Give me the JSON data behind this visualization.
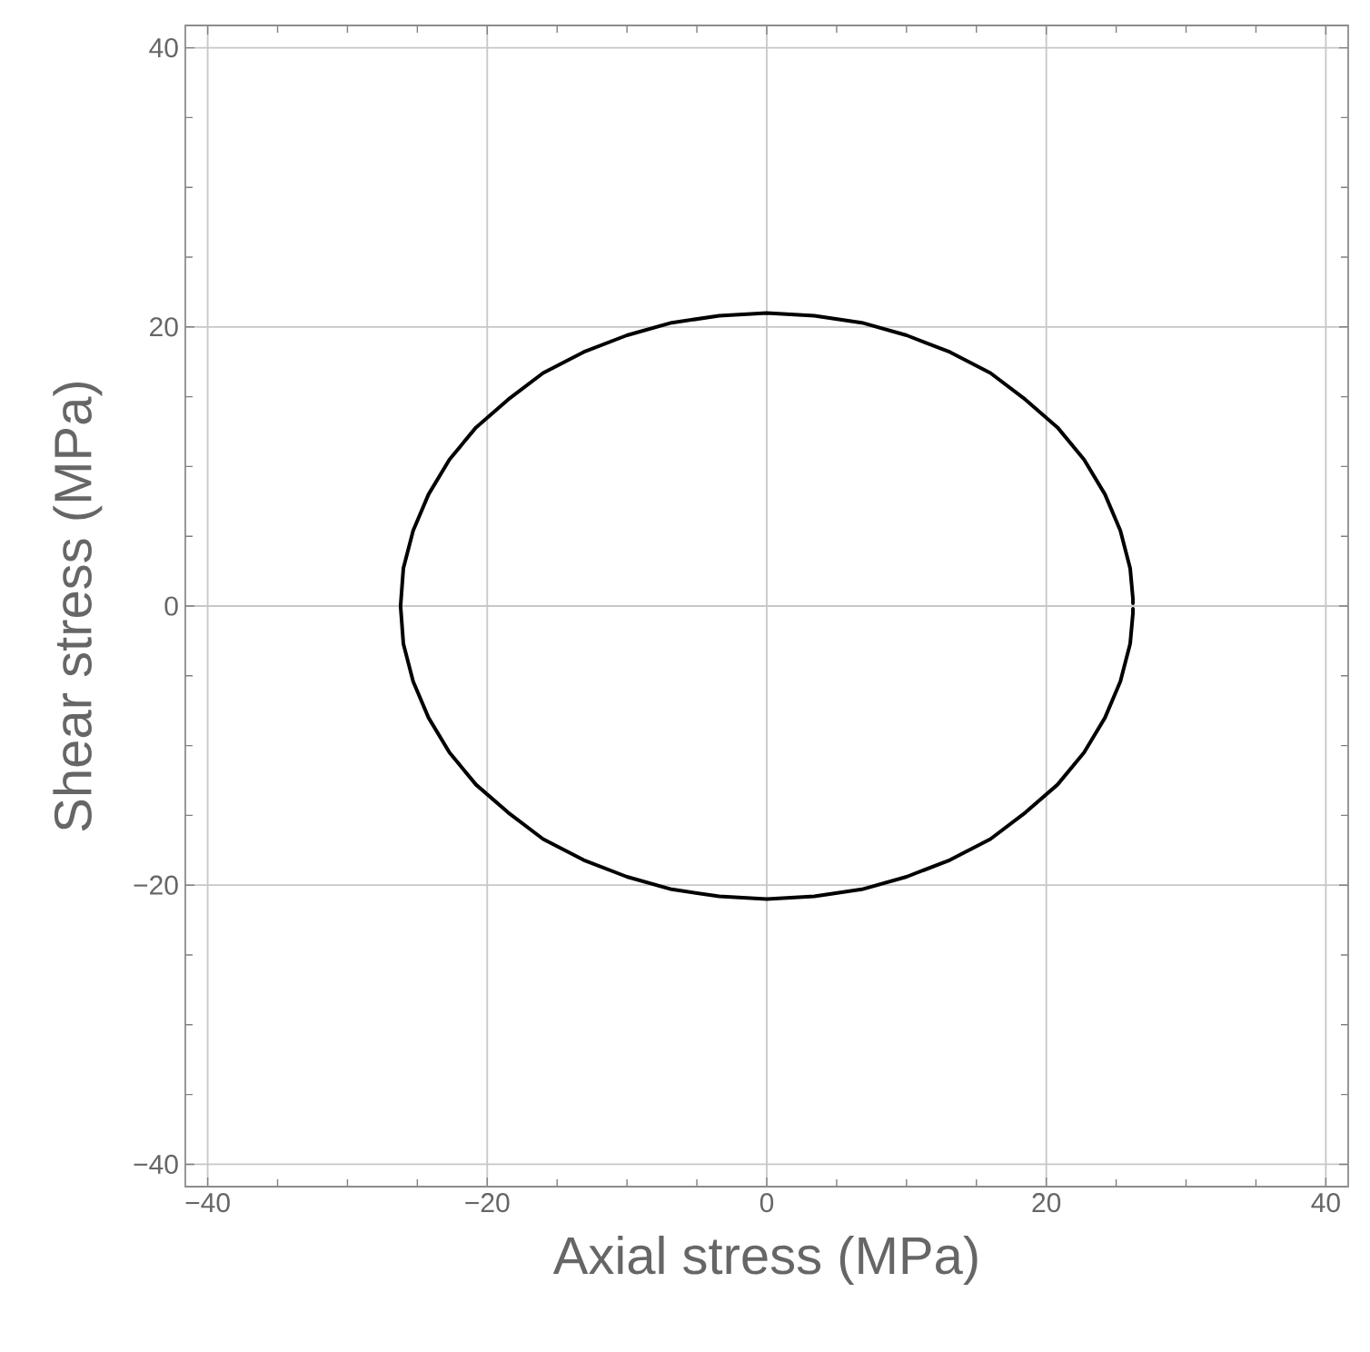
{
  "chart_data": {
    "type": "line",
    "xlabel": "Axial stress (MPa)",
    "ylabel": "Shear stress (MPa)",
    "xlim": [
      -41.6,
      41.6
    ],
    "ylim": [
      -41.6,
      41.6
    ],
    "xticks": [
      {
        "value": -40,
        "label": "−40"
      },
      {
        "value": -35,
        "label": null
      },
      {
        "value": -30,
        "label": null
      },
      {
        "value": -25,
        "label": null
      },
      {
        "value": -20,
        "label": "−20"
      },
      {
        "value": -15,
        "label": null
      },
      {
        "value": -10,
        "label": null
      },
      {
        "value": -5,
        "label": null
      },
      0,
      {
        "value": 5,
        "label": null
      },
      {
        "value": 10,
        "label": null
      },
      {
        "value": 15,
        "label": null
      },
      20,
      {
        "value": 25,
        "label": null
      },
      {
        "value": 30,
        "label": null
      },
      {
        "value": 35,
        "label": null
      },
      40
    ],
    "yticks": [
      {
        "value": -40,
        "label": "−40"
      },
      {
        "value": -35,
        "label": null
      },
      {
        "value": -30,
        "label": null
      },
      {
        "value": -25,
        "label": null
      },
      {
        "value": -20,
        "label": "−20"
      },
      {
        "value": -15,
        "label": null
      },
      {
        "value": -10,
        "label": null
      },
      {
        "value": -5,
        "label": null
      },
      0,
      {
        "value": 5,
        "label": null
      },
      {
        "value": 10,
        "label": null
      },
      {
        "value": 15,
        "label": null
      },
      20,
      {
        "value": 25,
        "label": null
      },
      {
        "value": 30,
        "label": null
      },
      {
        "value": 35,
        "label": null
      },
      40
    ],
    "grid": true,
    "series": [
      {
        "color": "#000000",
        "x": [
          26.2,
          26.2,
          26.0,
          25.3,
          24.2,
          22.7,
          20.8,
          18.5,
          16.0,
          13.1,
          10.0,
          6.8,
          3.4,
          0,
          -3.4,
          -6.8,
          -10.0,
          -13.1,
          -16.0,
          -18.5,
          -20.8,
          -22.7,
          -24.2,
          -25.3,
          -26.0,
          -26.2,
          -26.0,
          -25.3,
          -24.2,
          -22.7,
          -20.8,
          -18.5,
          -16.0,
          -13.1,
          -10.0,
          -6.8,
          -3.4,
          0,
          3.4,
          6.8,
          10.0,
          13.1,
          16.0,
          18.5,
          20.8,
          22.7,
          24.2,
          25.3,
          26.0,
          26.2,
          26.2
        ],
        "values": [
          0.2,
          0.5,
          2.7,
          5.4,
          8.0,
          10.5,
          12.8,
          14.8,
          16.7,
          18.2,
          19.4,
          20.3,
          20.8,
          21,
          20.8,
          20.3,
          19.4,
          18.2,
          16.7,
          14.8,
          12.8,
          10.5,
          8.0,
          5.4,
          2.7,
          0,
          -2.7,
          -5.4,
          -8.0,
          -10.5,
          -12.8,
          -14.8,
          -16.7,
          -18.2,
          -19.4,
          -20.3,
          -20.8,
          -21,
          -20.8,
          -20.3,
          -19.4,
          -18.2,
          -16.7,
          -14.8,
          -12.8,
          -10.5,
          -8.0,
          -5.4,
          -2.7,
          -0.5,
          -0.2
        ]
      }
    ]
  }
}
